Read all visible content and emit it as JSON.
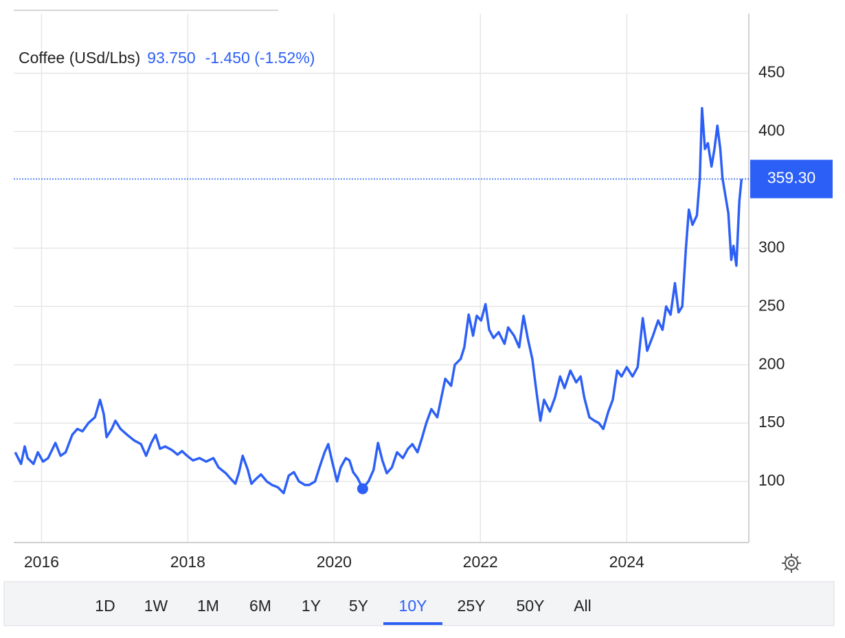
{
  "chart_data": {
    "type": "line",
    "title": "Coffee (USd/Lbs)",
    "hover": {
      "x": 2020.39,
      "value": 93.75,
      "value_label": "93.750",
      "change": "-1.450 (-1.52%)"
    },
    "last_price": {
      "value": 359.3,
      "label": "359.30"
    },
    "color": "#2c5ff6",
    "x": [
      2015.64,
      2015.72,
      2015.77,
      2015.81,
      2015.89,
      2015.95,
      2016.02,
      2016.09,
      2016.19,
      2016.26,
      2016.33,
      2016.42,
      2016.49,
      2016.56,
      2016.64,
      2016.73,
      2016.8,
      2016.85,
      2016.89,
      2016.96,
      2017.01,
      2017.08,
      2017.17,
      2017.27,
      2017.36,
      2017.43,
      2017.5,
      2017.56,
      2017.62,
      2017.69,
      2017.78,
      2017.86,
      2017.92,
      2017.99,
      2018.07,
      2018.16,
      2018.25,
      2018.35,
      2018.42,
      2018.52,
      2018.59,
      2018.65,
      2018.7,
      2018.75,
      2018.82,
      2018.87,
      2018.93,
      2019.0,
      2019.08,
      2019.15,
      2019.23,
      2019.31,
      2019.38,
      2019.45,
      2019.52,
      2019.6,
      2019.66,
      2019.74,
      2019.8,
      2019.87,
      2019.92,
      2019.97,
      2020.04,
      2020.09,
      2020.16,
      2020.21,
      2020.26,
      2020.32,
      2020.39,
      2020.47,
      2020.54,
      2020.6,
      2020.66,
      2020.72,
      2020.79,
      2020.86,
      2020.94,
      2021.01,
      2021.07,
      2021.14,
      2021.2,
      2021.26,
      2021.33,
      2021.41,
      2021.46,
      2021.52,
      2021.6,
      2021.65,
      2021.73,
      2021.78,
      2021.84,
      2021.9,
      2021.95,
      2022.01,
      2022.07,
      2022.12,
      2022.18,
      2022.25,
      2022.33,
      2022.38,
      2022.46,
      2022.53,
      2022.59,
      2022.65,
      2022.71,
      2022.76,
      2022.82,
      2022.87,
      2022.95,
      2023.02,
      2023.09,
      2023.15,
      2023.23,
      2023.31,
      2023.37,
      2023.42,
      2023.49,
      2023.56,
      2023.62,
      2023.68,
      2023.75,
      2023.81,
      2023.87,
      2023.93,
      2024.0,
      2024.08,
      2024.15,
      2024.22,
      2024.28,
      2024.36,
      2024.43,
      2024.49,
      2024.54,
      2024.6,
      2024.66,
      2024.71,
      2024.76,
      2024.81,
      2024.85,
      2024.9,
      2024.96,
      2025.0,
      2025.03,
      2025.07,
      2025.11,
      2025.16,
      2025.2,
      2025.24,
      2025.28,
      2025.31,
      2025.35,
      2025.39,
      2025.43,
      2025.46,
      2025.5,
      2025.54,
      2025.57
    ],
    "values": [
      125,
      115,
      130,
      120,
      115,
      125,
      117,
      120,
      133,
      122,
      125,
      140,
      145,
      143,
      150,
      155,
      170,
      158,
      138,
      145,
      152,
      145,
      140,
      135,
      132,
      122,
      133,
      140,
      128,
      130,
      127,
      123,
      126,
      122,
      118,
      120,
      117,
      120,
      112,
      107,
      102,
      98,
      108,
      122,
      110,
      98,
      102,
      106,
      100,
      97,
      95,
      90,
      105,
      108,
      100,
      97,
      97,
      100,
      112,
      125,
      132,
      118,
      100,
      112,
      120,
      118,
      108,
      103,
      94,
      100,
      110,
      133,
      118,
      107,
      112,
      125,
      120,
      128,
      132,
      125,
      137,
      150,
      162,
      155,
      170,
      188,
      182,
      200,
      205,
      215,
      243,
      225,
      242,
      238,
      252,
      230,
      223,
      228,
      218,
      232,
      225,
      215,
      242,
      222,
      205,
      180,
      152,
      170,
      160,
      172,
      190,
      180,
      195,
      185,
      190,
      172,
      155,
      152,
      150,
      145,
      160,
      170,
      195,
      190,
      198,
      190,
      198,
      240,
      212,
      225,
      238,
      230,
      250,
      243,
      270,
      245,
      250,
      300,
      333,
      320,
      328,
      360,
      420,
      385,
      390,
      370,
      385,
      405,
      385,
      360,
      345,
      330,
      290,
      302,
      285,
      340,
      359.3
    ],
    "xlim": [
      2015.62,
      2025.67
    ],
    "ylim": [
      47.6,
      501
    ],
    "xticks": [
      2016,
      2018,
      2020,
      2022,
      2024
    ],
    "yticks": [
      100,
      150,
      200,
      250,
      300,
      400,
      450
    ],
    "grid": true,
    "ranges": [
      "1D",
      "1W",
      "1M",
      "6M",
      "1Y",
      "5Y",
      "10Y",
      "25Y",
      "50Y",
      "All"
    ],
    "active_range": "10Y"
  }
}
